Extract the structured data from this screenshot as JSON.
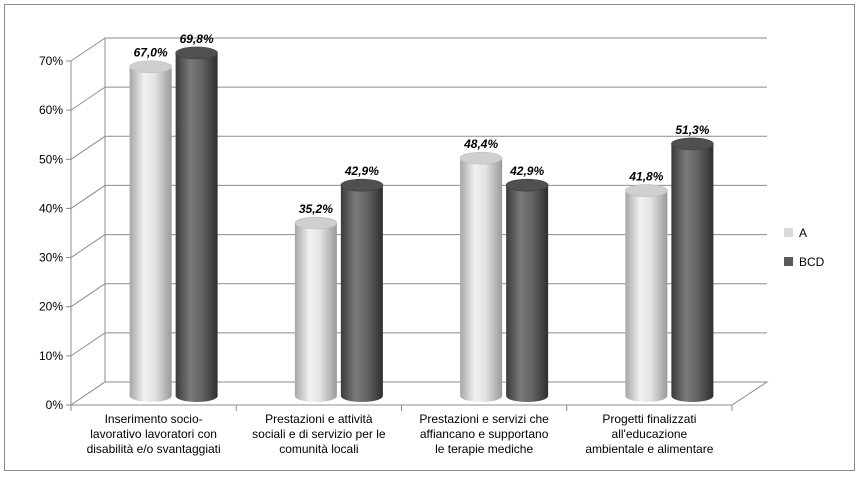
{
  "chart_data": {
    "type": "bar",
    "categories": [
      "Inserimento socio-\nlavorativo lavoratori con\ndisabilità e/o svantaggiati",
      "Prestazioni e attività\nsociali e di servizio per le\ncomunità locali",
      "Prestazioni e servizi che\naffiancano e supportano\nle terapie mediche",
      "Progetti finalizzati\nall'educazione\nambientale e alimentare"
    ],
    "series": [
      {
        "name": "A",
        "values": [
          67.0,
          35.2,
          48.4,
          41.8
        ],
        "labels": [
          "67,0%",
          "35,2%",
          "48,4%",
          "41,8%"
        ],
        "color": "#d9d9d9"
      },
      {
        "name": "BCD",
        "values": [
          69.8,
          42.9,
          42.9,
          51.3
        ],
        "labels": [
          "69,8%",
          "42,9%",
          "42,9%",
          "51,3%"
        ],
        "color": "#595959"
      }
    ],
    "ylim": [
      0,
      70
    ],
    "yticks": [
      "0%",
      "10%",
      "20%",
      "30%",
      "40%",
      "50%",
      "60%",
      "70%"
    ],
    "grid": true,
    "legend_position": "right",
    "style": "3d-cylinder"
  }
}
